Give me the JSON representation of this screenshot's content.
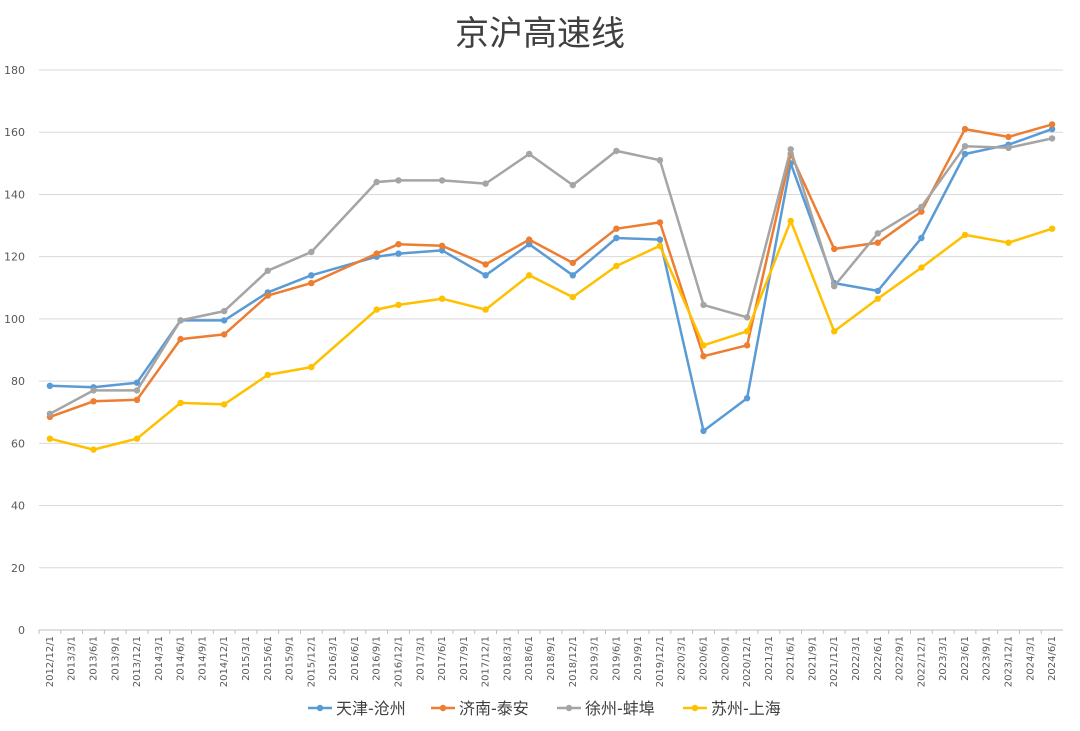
{
  "chart_data": {
    "type": "line",
    "title": "京沪高速线",
    "xlabel": "",
    "ylabel": "",
    "ylim": [
      0,
      180
    ],
    "yticks": [
      0,
      20,
      40,
      60,
      80,
      100,
      120,
      140,
      160,
      180
    ],
    "grid": true,
    "legend_position": "bottom",
    "categories": [
      "2012/12/1",
      "2013/3/1",
      "2013/6/1",
      "2013/9/1",
      "2013/12/1",
      "2014/3/1",
      "2014/6/1",
      "2014/9/1",
      "2014/12/1",
      "2015/3/1",
      "2015/6/1",
      "2015/9/1",
      "2015/12/1",
      "2016/3/1",
      "2016/6/1",
      "2016/9/1",
      "2016/12/1",
      "2017/3/1",
      "2017/6/1",
      "2017/9/1",
      "2017/12/1",
      "2018/3/1",
      "2018/6/1",
      "2018/9/1",
      "2018/12/1",
      "2019/3/1",
      "2019/6/1",
      "2019/9/1",
      "2019/12/1",
      "2020/3/1",
      "2020/6/1",
      "2020/9/1",
      "2020/12/1",
      "2021/3/1",
      "2021/6/1",
      "2021/9/1",
      "2021/12/1",
      "2022/3/1",
      "2022/6/1",
      "2022/9/1",
      "2022/12/1",
      "2023/3/1",
      "2023/6/1",
      "2023/9/1",
      "2023/12/1",
      "2024/3/1",
      "2024/6/1"
    ],
    "series": [
      {
        "name": "天津-沧州",
        "color": "#5b9bd5",
        "points": [
          {
            "x": "2012/12/1",
            "y": 78.5
          },
          {
            "x": "2013/6/1",
            "y": 78
          },
          {
            "x": "2013/12/1",
            "y": 79.5
          },
          {
            "x": "2014/6/1",
            "y": 99.5
          },
          {
            "x": "2014/12/1",
            "y": 99.5
          },
          {
            "x": "2015/6/1",
            "y": 108.5
          },
          {
            "x": "2015/12/1",
            "y": 114
          },
          {
            "x": "2016/9/1",
            "y": 120
          },
          {
            "x": "2016/12/1",
            "y": 121
          },
          {
            "x": "2017/6/1",
            "y": 122
          },
          {
            "x": "2017/12/1",
            "y": 114
          },
          {
            "x": "2018/6/1",
            "y": 124
          },
          {
            "x": "2018/12/1",
            "y": 114
          },
          {
            "x": "2019/6/1",
            "y": 126
          },
          {
            "x": "2019/12/1",
            "y": 125.5
          },
          {
            "x": "2020/6/1",
            "y": 64
          },
          {
            "x": "2020/12/1",
            "y": 74.5
          },
          {
            "x": "2021/6/1",
            "y": 150
          },
          {
            "x": "2021/12/1",
            "y": 111.5
          },
          {
            "x": "2022/6/1",
            "y": 109
          },
          {
            "x": "2022/12/1",
            "y": 126
          },
          {
            "x": "2023/6/1",
            "y": 153
          },
          {
            "x": "2023/12/1",
            "y": 156
          },
          {
            "x": "2024/6/1",
            "y": 161
          }
        ]
      },
      {
        "name": "济南-泰安",
        "color": "#ed7d31",
        "points": [
          {
            "x": "2012/12/1",
            "y": 68.5
          },
          {
            "x": "2013/6/1",
            "y": 73.5
          },
          {
            "x": "2013/12/1",
            "y": 74
          },
          {
            "x": "2014/6/1",
            "y": 93.5
          },
          {
            "x": "2014/12/1",
            "y": 95
          },
          {
            "x": "2015/6/1",
            "y": 107.5
          },
          {
            "x": "2015/12/1",
            "y": 111.5
          },
          {
            "x": "2016/9/1",
            "y": 121
          },
          {
            "x": "2016/12/1",
            "y": 124
          },
          {
            "x": "2017/6/1",
            "y": 123.5
          },
          {
            "x": "2017/12/1",
            "y": 117.5
          },
          {
            "x": "2018/6/1",
            "y": 125.5
          },
          {
            "x": "2018/12/1",
            "y": 118
          },
          {
            "x": "2019/6/1",
            "y": 129
          },
          {
            "x": "2019/12/1",
            "y": 131
          },
          {
            "x": "2020/6/1",
            "y": 88
          },
          {
            "x": "2020/12/1",
            "y": 91.5
          },
          {
            "x": "2021/6/1",
            "y": 153
          },
          {
            "x": "2021/12/1",
            "y": 122.5
          },
          {
            "x": "2022/6/1",
            "y": 124.5
          },
          {
            "x": "2022/12/1",
            "y": 134.5
          },
          {
            "x": "2023/6/1",
            "y": 161
          },
          {
            "x": "2023/12/1",
            "y": 158.5
          },
          {
            "x": "2024/6/1",
            "y": 162.5
          }
        ]
      },
      {
        "name": "徐州-蚌埠",
        "color": "#a5a5a5",
        "points": [
          {
            "x": "2012/12/1",
            "y": 69.5
          },
          {
            "x": "2013/6/1",
            "y": 77
          },
          {
            "x": "2013/12/1",
            "y": 77
          },
          {
            "x": "2014/6/1",
            "y": 99.5
          },
          {
            "x": "2014/12/1",
            "y": 102.5
          },
          {
            "x": "2015/6/1",
            "y": 115.5
          },
          {
            "x": "2015/12/1",
            "y": 121.5
          },
          {
            "x": "2016/9/1",
            "y": 144
          },
          {
            "x": "2016/12/1",
            "y": 144.5
          },
          {
            "x": "2017/6/1",
            "y": 144.5
          },
          {
            "x": "2017/12/1",
            "y": 143.5
          },
          {
            "x": "2018/6/1",
            "y": 153
          },
          {
            "x": "2018/12/1",
            "y": 143
          },
          {
            "x": "2019/6/1",
            "y": 154
          },
          {
            "x": "2019/12/1",
            "y": 151
          },
          {
            "x": "2020/6/1",
            "y": 104.5
          },
          {
            "x": "2020/12/1",
            "y": 100.5
          },
          {
            "x": "2021/6/1",
            "y": 154.5
          },
          {
            "x": "2021/12/1",
            "y": 110.5
          },
          {
            "x": "2022/6/1",
            "y": 127.5
          },
          {
            "x": "2022/12/1",
            "y": 136
          },
          {
            "x": "2023/6/1",
            "y": 155.5
          },
          {
            "x": "2023/12/1",
            "y": 155
          },
          {
            "x": "2024/6/1",
            "y": 158
          }
        ]
      },
      {
        "name": "苏州-上海",
        "color": "#ffc000",
        "points": [
          {
            "x": "2012/12/1",
            "y": 61.5
          },
          {
            "x": "2013/6/1",
            "y": 58
          },
          {
            "x": "2013/12/1",
            "y": 61.5
          },
          {
            "x": "2014/6/1",
            "y": 73
          },
          {
            "x": "2014/12/1",
            "y": 72.5
          },
          {
            "x": "2015/6/1",
            "y": 82
          },
          {
            "x": "2015/12/1",
            "y": 84.5
          },
          {
            "x": "2016/9/1",
            "y": 103
          },
          {
            "x": "2016/12/1",
            "y": 104.5
          },
          {
            "x": "2017/6/1",
            "y": 106.5
          },
          {
            "x": "2017/12/1",
            "y": 103
          },
          {
            "x": "2018/6/1",
            "y": 114
          },
          {
            "x": "2018/12/1",
            "y": 107
          },
          {
            "x": "2019/6/1",
            "y": 117
          },
          {
            "x": "2019/12/1",
            "y": 123.5
          },
          {
            "x": "2020/6/1",
            "y": 91.5
          },
          {
            "x": "2020/12/1",
            "y": 96
          },
          {
            "x": "2021/6/1",
            "y": 131.5
          },
          {
            "x": "2021/12/1",
            "y": 96
          },
          {
            "x": "2022/6/1",
            "y": 106.5
          },
          {
            "x": "2022/12/1",
            "y": 116.5
          },
          {
            "x": "2023/6/1",
            "y": 127
          },
          {
            "x": "2023/12/1",
            "y": 124.5
          },
          {
            "x": "2024/6/1",
            "y": 129
          }
        ]
      }
    ]
  }
}
